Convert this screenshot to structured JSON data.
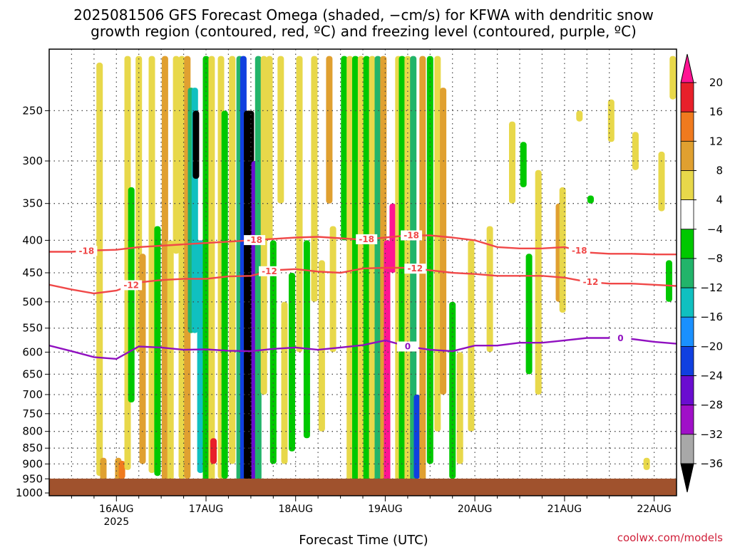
{
  "chart_data": {
    "type": "heatmap",
    "title_line1": "2025081506 GFS Forecast Omega (shaded, −cm/s) for KFWA with dendritic snow",
    "title_line2": "growth region (contoured, red, ºC) and freezing level (contoured, purple, ºC)",
    "xlabel": "Forecast Time (UTC)",
    "ylabel": "",
    "credit": "coolwx.com/models",
    "y_scale": "log-pressure",
    "y_ticks": [
      "250",
      "300",
      "350",
      "400",
      "450",
      "500",
      "550",
      "600",
      "650",
      "700",
      "750",
      "800",
      "850",
      "900",
      "950",
      "1000"
    ],
    "y_tick_values": [
      250,
      300,
      350,
      400,
      450,
      500,
      550,
      600,
      650,
      700,
      750,
      800,
      850,
      900,
      950,
      1000
    ],
    "y_range_hPa": [
      200,
      1010
    ],
    "x_range_hours": [
      6,
      174
    ],
    "x_ticks": [
      {
        "label": "16AUG",
        "sub": "2025",
        "hour": 24
      },
      {
        "label": "17AUG",
        "sub": "",
        "hour": 48
      },
      {
        "label": "18AUG",
        "sub": "",
        "hour": 72
      },
      {
        "label": "19AUG",
        "sub": "",
        "hour": 96
      },
      {
        "label": "20AUG",
        "sub": "",
        "hour": 120
      },
      {
        "label": "21AUG",
        "sub": "",
        "hour": 144
      },
      {
        "label": "22AUG",
        "sub": "",
        "hour": 168
      }
    ],
    "grid": true,
    "ground_color": "#a0522d",
    "colorbar": {
      "labels": [
        "20",
        "16",
        "12",
        "8",
        "4",
        "−4",
        "−8",
        "−12",
        "−16",
        "−20",
        "−24",
        "−28",
        "−32",
        "−36"
      ],
      "colors": [
        "#ff1493",
        "#e8202a",
        "#f07a1e",
        "#e0a030",
        "#e8d84a",
        "#ffffff",
        "#00c800",
        "#22b46a",
        "#10c0c0",
        "#1a90ff",
        "#1040e0",
        "#6a0dd0",
        "#a010c8",
        "#a8a8a8",
        "#000000"
      ]
    },
    "omega_features": [
      {
        "hour": 19.5,
        "p_top": 210,
        "p_bot": 940,
        "level": 4
      },
      {
        "hour": 20.5,
        "p_top": 880,
        "p_bot": 960,
        "level": 8
      },
      {
        "hour": 24.5,
        "p_top": 880,
        "p_bot": 960,
        "level": 8
      },
      {
        "hour": 25.5,
        "p_top": 890,
        "p_bot": 950,
        "level": 12
      },
      {
        "hour": 27.0,
        "p_top": 205,
        "p_bot": 920,
        "level": 4
      },
      {
        "hour": 28.0,
        "p_top": 330,
        "p_bot": 720,
        "level": -8
      },
      {
        "hour": 30.0,
        "p_top": 205,
        "p_bot": 600,
        "level": 4
      },
      {
        "hour": 31.0,
        "p_top": 420,
        "p_bot": 900,
        "level": 8
      },
      {
        "hour": 33.5,
        "p_top": 205,
        "p_bot": 930,
        "level": 4
      },
      {
        "hour": 35.0,
        "p_top": 380,
        "p_bot": 940,
        "level": -8
      },
      {
        "hour": 37.0,
        "p_top": 205,
        "p_bot": 960,
        "level": 8
      },
      {
        "hour": 38.5,
        "p_top": 400,
        "p_bot": 960,
        "level": 4
      },
      {
        "hour": 40.0,
        "p_top": 205,
        "p_bot": 420,
        "level": 4
      },
      {
        "hour": 41.5,
        "p_top": 205,
        "p_bot": 950,
        "level": 4
      },
      {
        "hour": 43.0,
        "p_top": 205,
        "p_bot": 950,
        "level": 8
      },
      {
        "hour": 44.0,
        "p_top": 230,
        "p_bot": 560,
        "level": -12
      },
      {
        "hour": 45.0,
        "p_top": 230,
        "p_bot": 560,
        "level": -16
      },
      {
        "hour": 45.3,
        "p_top": 250,
        "p_bot": 320,
        "level": -36
      },
      {
        "hour": 46.5,
        "p_top": 400,
        "p_bot": 930,
        "level": -16
      },
      {
        "hour": 48.0,
        "p_top": 205,
        "p_bot": 960,
        "level": -8
      },
      {
        "hour": 49.5,
        "p_top": 205,
        "p_bot": 960,
        "level": 4
      },
      {
        "hour": 50.0,
        "p_top": 820,
        "p_bot": 900,
        "level": 16
      },
      {
        "hour": 52.0,
        "p_top": 205,
        "p_bot": 950,
        "level": 4
      },
      {
        "hour": 53.0,
        "p_top": 250,
        "p_bot": 950,
        "level": -8
      },
      {
        "hour": 55.0,
        "p_top": 205,
        "p_bot": 900,
        "level": 4
      },
      {
        "hour": 57.0,
        "p_top": 205,
        "p_bot": 960,
        "level": -12
      },
      {
        "hour": 58.0,
        "p_top": 205,
        "p_bot": 960,
        "level": -24
      },
      {
        "hour": 59.0,
        "p_top": 250,
        "p_bot": 960,
        "level": -36
      },
      {
        "hour": 60.0,
        "p_top": 250,
        "p_bot": 960,
        "level": -36
      },
      {
        "hour": 61.0,
        "p_top": 300,
        "p_bot": 960,
        "level": -28
      },
      {
        "hour": 62.0,
        "p_top": 205,
        "p_bot": 960,
        "level": -12
      },
      {
        "hour": 63.5,
        "p_top": 205,
        "p_bot": 700,
        "level": 4
      },
      {
        "hour": 65.0,
        "p_top": 205,
        "p_bot": 400,
        "level": 4
      },
      {
        "hour": 66.0,
        "p_top": 400,
        "p_bot": 900,
        "level": -8
      },
      {
        "hour": 68.0,
        "p_top": 205,
        "p_bot": 350,
        "level": 4
      },
      {
        "hour": 69.0,
        "p_top": 500,
        "p_bot": 900,
        "level": 4
      },
      {
        "hour": 71.0,
        "p_top": 450,
        "p_bot": 860,
        "level": -8
      },
      {
        "hour": 73.0,
        "p_top": 205,
        "p_bot": 600,
        "level": 4
      },
      {
        "hour": 75.0,
        "p_top": 400,
        "p_bot": 820,
        "level": -8
      },
      {
        "hour": 77.0,
        "p_top": 205,
        "p_bot": 500,
        "level": 4
      },
      {
        "hour": 79.0,
        "p_top": 430,
        "p_bot": 800,
        "level": 4
      },
      {
        "hour": 81.0,
        "p_top": 205,
        "p_bot": 350,
        "level": 8
      },
      {
        "hour": 82.0,
        "p_top": 380,
        "p_bot": 600,
        "level": 4
      },
      {
        "hour": 85.0,
        "p_top": 205,
        "p_bot": 400,
        "level": -8
      },
      {
        "hour": 86.5,
        "p_top": 205,
        "p_bot": 960,
        "level": 4
      },
      {
        "hour": 88.0,
        "p_top": 205,
        "p_bot": 960,
        "level": -8
      },
      {
        "hour": 89.5,
        "p_top": 205,
        "p_bot": 960,
        "level": 4
      },
      {
        "hour": 91.0,
        "p_top": 205,
        "p_bot": 960,
        "level": -8
      },
      {
        "hour": 92.5,
        "p_top": 205,
        "p_bot": 960,
        "level": 4
      },
      {
        "hour": 94.0,
        "p_top": 205,
        "p_bot": 960,
        "level": -12
      },
      {
        "hour": 95.5,
        "p_top": 205,
        "p_bot": 960,
        "level": 8
      },
      {
        "hour": 96.5,
        "p_top": 400,
        "p_bot": 960,
        "level": 20
      },
      {
        "hour": 98.0,
        "p_top": 350,
        "p_bot": 450,
        "level": 20
      },
      {
        "hour": 99.5,
        "p_top": 205,
        "p_bot": 960,
        "level": 4
      },
      {
        "hour": 100.5,
        "p_top": 205,
        "p_bot": 960,
        "level": -8
      },
      {
        "hour": 102.0,
        "p_top": 205,
        "p_bot": 960,
        "level": 4
      },
      {
        "hour": 103.5,
        "p_top": 205,
        "p_bot": 960,
        "level": -12
      },
      {
        "hour": 104.5,
        "p_top": 700,
        "p_bot": 950,
        "level": -24
      },
      {
        "hour": 106.0,
        "p_top": 205,
        "p_bot": 960,
        "level": 8
      },
      {
        "hour": 108.0,
        "p_top": 205,
        "p_bot": 900,
        "level": -8
      },
      {
        "hour": 110.0,
        "p_top": 205,
        "p_bot": 800,
        "level": 4
      },
      {
        "hour": 111.5,
        "p_top": 230,
        "p_bot": 700,
        "level": 8
      },
      {
        "hour": 114.0,
        "p_top": 500,
        "p_bot": 950,
        "level": -8
      },
      {
        "hour": 116.0,
        "p_top": 600,
        "p_bot": 900,
        "level": 4
      },
      {
        "hour": 119.0,
        "p_top": 400,
        "p_bot": 800,
        "level": 4
      },
      {
        "hour": 124.0,
        "p_top": 380,
        "p_bot": 600,
        "level": 4
      },
      {
        "hour": 130.0,
        "p_top": 260,
        "p_bot": 350,
        "level": 4
      },
      {
        "hour": 133.0,
        "p_top": 280,
        "p_bot": 330,
        "level": -8
      },
      {
        "hour": 134.5,
        "p_top": 420,
        "p_bot": 650,
        "level": -8
      },
      {
        "hour": 137.0,
        "p_top": 310,
        "p_bot": 700,
        "level": 4
      },
      {
        "hour": 142.5,
        "p_top": 350,
        "p_bot": 500,
        "level": 8
      },
      {
        "hour": 143.5,
        "p_top": 330,
        "p_bot": 520,
        "level": 4
      },
      {
        "hour": 148.0,
        "p_top": 250,
        "p_bot": 260,
        "level": 4
      },
      {
        "hour": 151.0,
        "p_top": 340,
        "p_bot": 350,
        "level": -8
      },
      {
        "hour": 156.5,
        "p_top": 240,
        "p_bot": 280,
        "level": 4
      },
      {
        "hour": 163.0,
        "p_top": 270,
        "p_bot": 310,
        "level": 4
      },
      {
        "hour": 166.0,
        "p_top": 880,
        "p_bot": 920,
        "level": 4
      },
      {
        "hour": 170.0,
        "p_top": 290,
        "p_bot": 360,
        "level": 4
      },
      {
        "hour": 172.0,
        "p_top": 430,
        "p_bot": 500,
        "level": -8
      },
      {
        "hour": 173.0,
        "p_top": 205,
        "p_bot": 240,
        "level": 4
      }
    ],
    "isotherms": [
      {
        "name": "-18",
        "color": "#f04848",
        "labels_at_hours": [
          16,
          61,
          91,
          103,
          148
        ],
        "x": [
          6,
          12,
          18,
          24,
          30,
          36,
          42,
          48,
          54,
          60,
          66,
          72,
          78,
          84,
          90,
          96,
          102,
          108,
          114,
          120,
          126,
          132,
          138,
          144,
          150,
          156,
          162,
          168,
          174
        ],
        "p": [
          417,
          417,
          415,
          414,
          410,
          408,
          406,
          404,
          402,
          400,
          398,
          396,
          395,
          397,
          399,
          396,
          393,
          393,
          396,
          400,
          410,
          412,
          412,
          410,
          418,
          420,
          420,
          421,
          421
        ]
      },
      {
        "name": "-12",
        "color": "#f04848",
        "labels_at_hours": [
          28,
          65,
          104,
          151
        ],
        "x": [
          6,
          12,
          18,
          24,
          30,
          36,
          42,
          48,
          54,
          60,
          66,
          72,
          78,
          84,
          90,
          96,
          102,
          108,
          114,
          120,
          126,
          132,
          138,
          144,
          150,
          156,
          162,
          168,
          174
        ],
        "p": [
          470,
          478,
          485,
          480,
          466,
          462,
          460,
          460,
          456,
          455,
          446,
          444,
          448,
          450,
          443,
          442,
          442,
          446,
          450,
          452,
          455,
          455,
          455,
          458,
          465,
          468,
          468,
          470,
          472
        ]
      },
      {
        "name": "0",
        "color": "#9010c0",
        "labels_at_hours": [
          102,
          159
        ],
        "x": [
          6,
          12,
          18,
          24,
          30,
          36,
          42,
          48,
          54,
          60,
          66,
          72,
          78,
          84,
          90,
          96,
          102,
          108,
          114,
          120,
          126,
          132,
          138,
          144,
          150,
          156,
          162,
          168,
          174
        ],
        "p": [
          586,
          598,
          611,
          615,
          588,
          590,
          595,
          594,
          597,
          598,
          593,
          590,
          595,
          590,
          585,
          575,
          588,
          595,
          598,
          586,
          586,
          580,
          580,
          575,
          570,
          570,
          572,
          578,
          582
        ]
      }
    ]
  }
}
